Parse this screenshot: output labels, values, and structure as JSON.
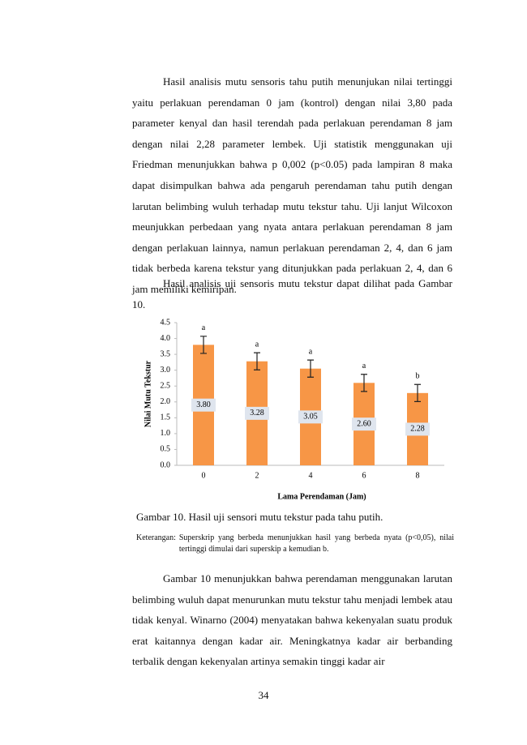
{
  "paragraphs": [
    "Hasil analisis mutu sensoris tahu putih menunjukan nilai tertinggi yaitu perlakuan perendaman 0 jam (kontrol) dengan nilai 3,80 pada parameter kenyal dan hasil terendah pada perlakuan perendaman 8 jam dengan nilai 2,28 parameter lembek. Uji statistik menggunakan uji Friedman menunjukkan bahwa p 0,002 (p<0.05) pada lampiran 8 maka dapat disimpulkan bahwa ada pengaruh perendaman tahu putih dengan larutan belimbing wuluh terhadap mutu tekstur tahu. Uji lanjut Wilcoxon meunjukkan perbedaan yang nyata antara perlakuan perendaman 8 jam dengan perlakuan lainnya, namun perlakuan perendaman 2, 4, dan 6 jam tidak berbeda karena tekstur yang ditunjukkan pada perlakuan 2, 4, dan 6 jam memiliki kemiripan.",
    "Hasil analisis uji sensoris mutu tekstur dapat dilihat pada Gambar 10.",
    "Gambar 10 menunjukkan bahwa perendaman menggunakan larutan belimbing wuluh dapat menurunkan mutu tekstur tahu menjadi lembek atau tidak kenyal. Winarno (2004) menyatakan bahwa kekenyalan suatu produk erat kaitannya dengan kadar air. Meningkatnya kadar air berbanding terbalik dengan kekenyalan artinya semakin tinggi kadar air"
  ],
  "chart_data": {
    "type": "bar",
    "categories": [
      "0",
      "2",
      "4",
      "6",
      "8"
    ],
    "values": [
      3.8,
      3.28,
      3.05,
      2.6,
      2.28
    ],
    "value_labels": [
      "3.80",
      "3.28",
      "3.05",
      "2.60",
      "2.28"
    ],
    "errors": [
      0.27,
      0.27,
      0.27,
      0.27,
      0.27
    ],
    "superscripts": [
      "a",
      "a",
      "a",
      "a",
      "b"
    ],
    "color": "#f79646",
    "ylabel": "Nilai Mutu Tekstur",
    "xlabel": "Lama Perendaman (Jam)",
    "ylim": [
      0,
      4.5
    ],
    "yticks": [
      {
        "value": 0,
        "label": "0.0"
      },
      {
        "value": 0.5,
        "label": "0.5"
      },
      {
        "value": 1,
        "label": "1.0"
      },
      {
        "value": 1.5,
        "label": "1.5"
      },
      {
        "value": 2,
        "label": "2.0"
      },
      {
        "value": 2.5,
        "label": "2.5"
      },
      {
        "value": 3,
        "label": "3.0"
      },
      {
        "value": 3.5,
        "label": "3.5"
      },
      {
        "value": 4,
        "label": "4.0"
      },
      {
        "value": 4.5,
        "label": "4.5"
      }
    ]
  },
  "caption": "Gambar 10. Hasil uji sensori mutu tekstur pada tahu putih.",
  "note": {
    "label": "Keterangan:",
    "text": "Superskrip yang berbeda menunjukkan hasil yang berbeda nyata (p<0,05), nilai tertinggi dimulai dari superskip a kemudian b."
  },
  "page_number": "34"
}
